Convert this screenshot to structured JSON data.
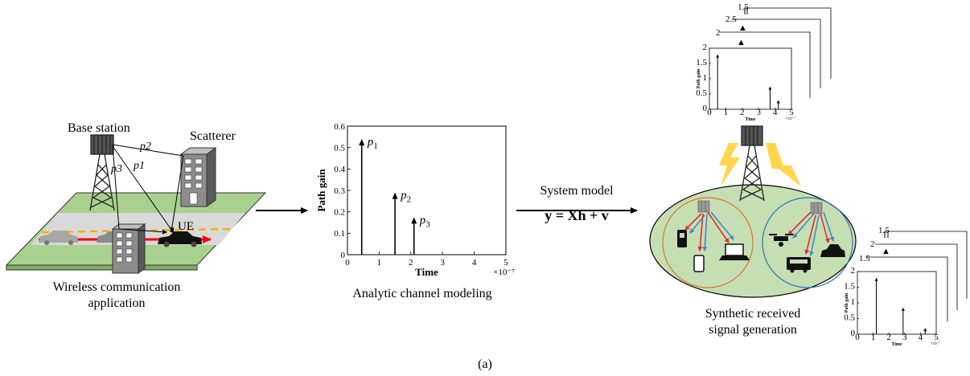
{
  "panel_label": "(a)",
  "scene": {
    "base_station_label": "Base station",
    "scatterer_label": "Scatterer",
    "ue_label": "UE",
    "path_labels": [
      "p2",
      "p3",
      "p1"
    ],
    "caption_line1": "Wireless communication",
    "caption_line2": "application"
  },
  "system_model": {
    "title": "System model",
    "equation": "y = Xh + v"
  },
  "main_plot_caption": "Analytic channel modeling",
  "right_caption_line1": "Synthetic received",
  "right_caption_line2": "signal generation",
  "colors": {
    "road_green": "#a9d18e",
    "road_gray": "#d9d9d9",
    "ellipse_fill": "#c5dfb3",
    "lane_dash": "#f2b200",
    "car_arrow": "#ff0000",
    "lightning": "#ffd54a",
    "left_group_ring": "#d9742b",
    "right_group_ring": "#2e75b6",
    "red_link": "#e03030",
    "blue_link": "#4a86c8"
  },
  "chart_data": [
    {
      "type": "stem",
      "title": "",
      "xlabel": "Time",
      "ylabel": "Path gain",
      "x_exponent_label": "×10⁻⁷",
      "xlim": [
        0,
        5
      ],
      "ylim": [
        0,
        0.6
      ],
      "xticks": [
        0,
        1,
        2,
        3,
        4,
        5
      ],
      "yticks": [
        0,
        0.1,
        0.2,
        0.3,
        0.4,
        0.5,
        0.6
      ],
      "x": [
        0.45,
        1.5,
        2.1
      ],
      "values": [
        0.54,
        0.29,
        0.175
      ],
      "labels": [
        "p1",
        "p2",
        "p3"
      ]
    },
    {
      "type": "stem",
      "xlabel": "Time",
      "ylabel": "Path gain",
      "x_exponent_label": "×10⁻⁷",
      "xlim": [
        0,
        5
      ],
      "ylim": [
        0,
        2
      ],
      "xticks": [
        0,
        1,
        2,
        3,
        4,
        5
      ],
      "yticks": [
        0,
        0.5,
        1,
        1.5,
        2
      ],
      "x": [
        0.5,
        3.7,
        4.2
      ],
      "values": [
        1.8,
        0.75,
        0.3
      ]
    },
    {
      "type": "stem",
      "xlabel": "Time",
      "ylabel": "Path gain",
      "x_exponent_label": "×10⁻⁷",
      "xlim": [
        0,
        5
      ],
      "ylim": [
        0,
        2
      ],
      "xticks": [
        0,
        1,
        2,
        3,
        4,
        5
      ],
      "yticks": [
        0,
        0.5,
        1,
        1.5,
        2
      ],
      "x": [
        1.2,
        2.9,
        4.3
      ],
      "values": [
        1.8,
        0.85,
        0.2
      ]
    }
  ]
}
